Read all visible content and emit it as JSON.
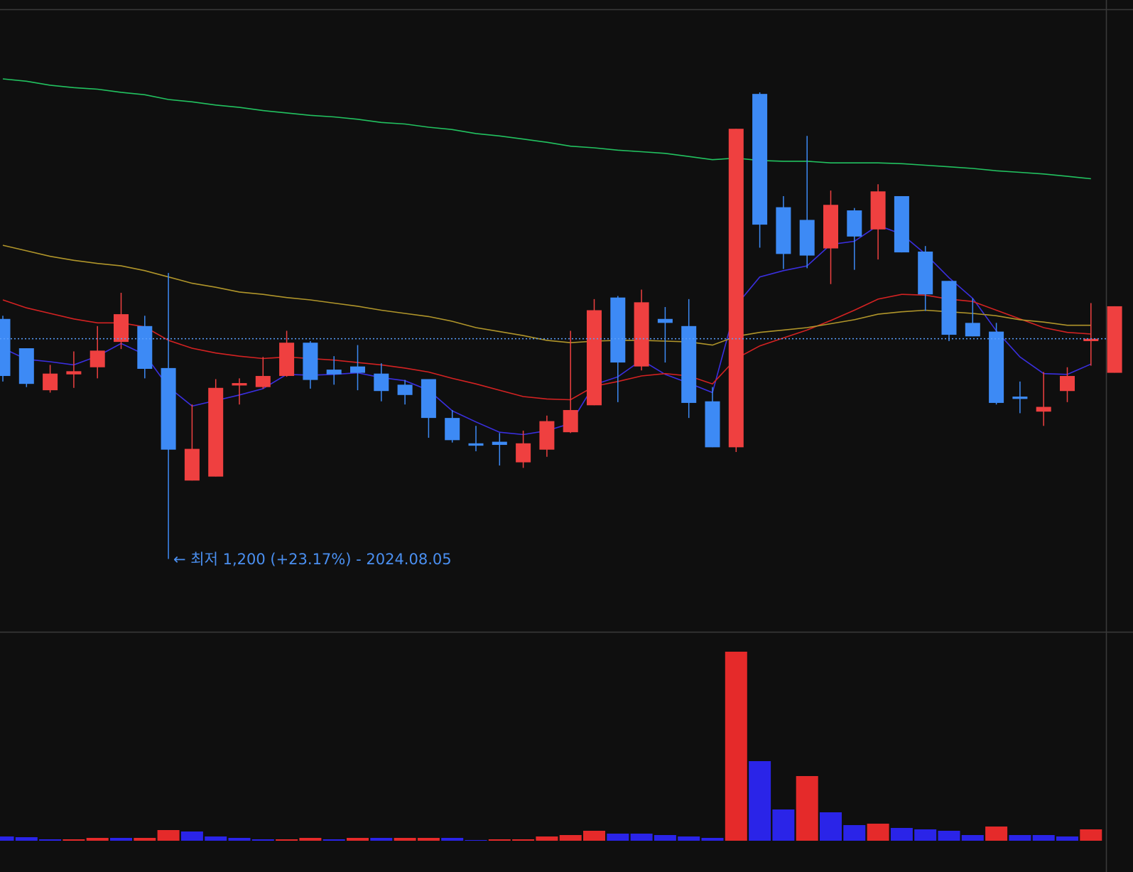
{
  "chart_data": {
    "type": "candlestick",
    "up_color": "#ef4040",
    "down_color": "#3d8af5",
    "ylim": [
      1109,
      1893
    ],
    "price_line": 1478,
    "price_line_color": "#5aa0ff",
    "annotation": "← 최저 1,200 (+23.17%) - 2024.08.05",
    "open": [
      1503,
      1466,
      1413,
      1433,
      1442,
      1474,
      1494,
      1441,
      1299,
      1304,
      1419,
      1417,
      1431,
      1473,
      1439,
      1443,
      1434,
      1420,
      1427,
      1378,
      1346,
      1348,
      1322,
      1338,
      1360,
      1394,
      1530,
      1443,
      1503,
      1494,
      1399,
      1341,
      1787,
      1644,
      1628,
      1592,
      1640,
      1616,
      1658,
      1588,
      1551,
      1498,
      1487,
      1405,
      1386,
      1412,
      1475,
      1435
    ],
    "high": [
      1507,
      1466,
      1445,
      1462,
      1494,
      1536,
      1507,
      1561,
      1395,
      1427,
      1428,
      1455,
      1488,
      1475,
      1456,
      1470,
      1447,
      1426,
      1427,
      1388,
      1368,
      1359,
      1362,
      1381,
      1488,
      1528,
      1532,
      1540,
      1518,
      1528,
      1417,
      1743,
      1789,
      1658,
      1734,
      1665,
      1643,
      1673,
      1658,
      1595,
      1551,
      1529,
      1498,
      1424,
      1436,
      1442,
      1523,
      1519
    ],
    "low": [
      1424,
      1417,
      1410,
      1416,
      1428,
      1465,
      1428,
      1200,
      1299,
      1304,
      1395,
      1415,
      1430,
      1415,
      1420,
      1413,
      1399,
      1395,
      1353,
      1347,
      1336,
      1318,
      1315,
      1329,
      1359,
      1394,
      1398,
      1438,
      1448,
      1378,
      1341,
      1335,
      1593,
      1566,
      1567,
      1547,
      1565,
      1578,
      1587,
      1513,
      1475,
      1481,
      1395,
      1384,
      1368,
      1398,
      1444,
      1435
    ],
    "close": [
      1431,
      1421,
      1434,
      1437,
      1463,
      1509,
      1440,
      1338,
      1339,
      1416,
      1422,
      1431,
      1473,
      1426,
      1433,
      1435,
      1412,
      1407,
      1378,
      1350,
      1343,
      1344,
      1346,
      1374,
      1388,
      1514,
      1448,
      1524,
      1498,
      1397,
      1341,
      1743,
      1622,
      1585,
      1583,
      1647,
      1607,
      1664,
      1587,
      1534,
      1483,
      1481,
      1397,
      1402,
      1392,
      1431,
      1478,
      1519
    ],
    "series": [
      {
        "color": "#3a2fe0",
        "values": [
          1466,
          1452,
          1449,
          1445,
          1456,
          1472,
          1458,
          1417,
          1393,
          1400,
          1407,
          1415,
          1433,
          1432,
          1433,
          1435,
          1429,
          1425,
          1413,
          1387,
          1373,
          1360,
          1357,
          1362,
          1371,
          1420,
          1430,
          1451,
          1433,
          1422,
          1410,
          1520,
          1556,
          1564,
          1570,
          1597,
          1601,
          1621,
          1610,
          1585,
          1555,
          1529,
          1488,
          1455,
          1434,
          1433,
          1446,
          null
        ]
      },
      {
        "color": "#d42222",
        "values": [
          1527,
          1517,
          1510,
          1503,
          1498,
          1498,
          1493,
          1476,
          1466,
          1460,
          1456,
          1453,
          1455,
          1453,
          1451,
          1448,
          1445,
          1441,
          1436,
          1428,
          1421,
          1413,
          1405,
          1402,
          1401,
          1418,
          1424,
          1431,
          1434,
          1431,
          1421,
          1453,
          1469,
          1479,
          1489,
          1501,
          1514,
          1528,
          1534,
          1533,
          1528,
          1525,
          1514,
          1503,
          1492,
          1486,
          1484,
          null
        ]
      },
      {
        "color": "#b0952a",
        "values": [
          1596,
          1589,
          1582,
          1577,
          1573,
          1570,
          1564,
          1556,
          1548,
          1543,
          1537,
          1534,
          1530,
          1527,
          1523,
          1519,
          1514,
          1510,
          1506,
          1500,
          1492,
          1487,
          1482,
          1476,
          1473,
          1475,
          1476,
          1476,
          1475,
          1474,
          1470,
          1481,
          1486,
          1489,
          1492,
          1497,
          1502,
          1509,
          1512,
          1514,
          1512,
          1510,
          1507,
          1502,
          1499,
          1495,
          1495,
          null
        ]
      },
      {
        "color": "#22c260",
        "values": [
          1806,
          1803,
          1798,
          1795,
          1793,
          1789,
          1786,
          1780,
          1777,
          1773,
          1770,
          1766,
          1763,
          1760,
          1758,
          1755,
          1751,
          1749,
          1745,
          1742,
          1737,
          1734,
          1730,
          1726,
          1721,
          1719,
          1716,
          1714,
          1712,
          1708,
          1704,
          1706,
          1703,
          1702,
          1702,
          1700,
          1700,
          1700,
          1699,
          1697,
          1695,
          1693,
          1690,
          1688,
          1686,
          1683,
          1680,
          null
        ]
      }
    ],
    "volume": {
      "ylim": [
        0,
        293
      ],
      "values": [
        6,
        5,
        2,
        2,
        4,
        4,
        4,
        15,
        13,
        6,
        4,
        2,
        2,
        4,
        2,
        4,
        4,
        4,
        4,
        4,
        1,
        2,
        2,
        6,
        8,
        14,
        10,
        10,
        8,
        6,
        4,
        266,
        112,
        44,
        91,
        40,
        22,
        24,
        18,
        16,
        14,
        8,
        20,
        8,
        8,
        6,
        16,
        null
      ],
      "colors": [
        "#2a24e8",
        "#2a24e8",
        "#2a24e8",
        "#e52a2a",
        "#e52a2a",
        "#2a24e8",
        "#e52a2a",
        "#e52a2a",
        "#2a24e8",
        "#2a24e8",
        "#2a24e8",
        "#2a24e8",
        "#e52a2a",
        "#e52a2a",
        "#2a24e8",
        "#e52a2a",
        "#2a24e8",
        "#e52a2a",
        "#e52a2a",
        "#2a24e8",
        "#2a24e8",
        "#e52a2a",
        "#e52a2a",
        "#e52a2a",
        "#e52a2a",
        "#e52a2a",
        "#2a24e8",
        "#2a24e8",
        "#2a24e8",
        "#2a24e8",
        "#2a24e8",
        "#e52a2a",
        "#2a24e8",
        "#2a24e8",
        "#e52a2a",
        "#2a24e8",
        "#2a24e8",
        "#e52a2a",
        "#2a24e8",
        "#2a24e8",
        "#2a24e8",
        "#2a24e8",
        "#e52a2a",
        "#2a24e8",
        "#2a24e8",
        "#2a24e8",
        "#e52a2a",
        null
      ]
    }
  }
}
